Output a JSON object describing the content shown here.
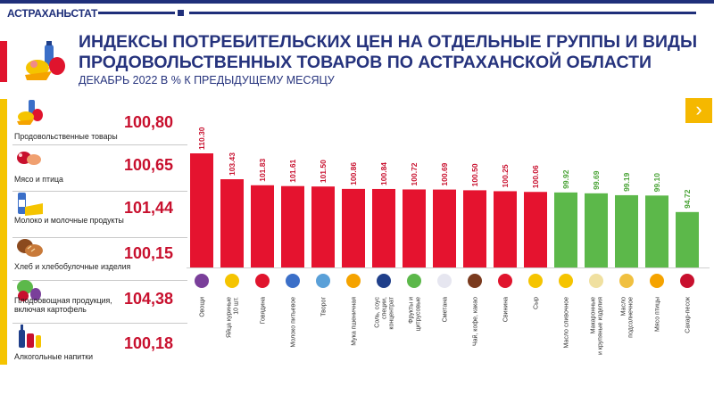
{
  "header": {
    "brand": "АСТРАХАНЬСТАТ",
    "title_line1": "ИНДЕКСЫ ПОТРЕБИТЕЛЬСКИХ ЦЕН НА ОТДЕЛЬНЫЕ ГРУППЫ И ВИДЫ",
    "title_line2": "ПРОДОВОЛЬСТВЕННЫХ ТОВАРОВ ПО АСТРАХАНСКОЙ ОБЛАСТИ",
    "subtitle": "ДЕКАБРЬ 2022 В % К ПРЕДЫДУЩЕМУ МЕСЯЦУ"
  },
  "colors": {
    "brand": "#1f2f7a",
    "accent_red": "#e0142d",
    "accent_yellow": "#f5c400",
    "bar_red": "#e5132f",
    "bar_green": "#5cb84a",
    "value_red": "#c8102e",
    "value_green": "#4aa336"
  },
  "nav": {
    "next_icon": "chevron-right-icon",
    "next_symbol": "›"
  },
  "sidebar": {
    "groups": [
      {
        "label": "Продовольственные товары",
        "value": "100,80",
        "icon": "food-icon"
      },
      {
        "label": "Мясо и птица",
        "value": "100,65",
        "icon": "meat-icon"
      },
      {
        "label": "Молоко и молочные продукты",
        "value": "101,44",
        "icon": "milk-icon"
      },
      {
        "label": "Хлеб и хлебобулочные изделия",
        "value": "100,15",
        "icon": "bread-icon"
      },
      {
        "label": "Плодоовощная продукция, включая картофель",
        "label_line1": "Плодоовощная продукция,",
        "label_line2": "включая картофель",
        "value": "104,38",
        "icon": "vegetables-icon"
      },
      {
        "label": "Алкогольные напитки",
        "value": "100,18",
        "icon": "bottles-icon"
      }
    ]
  },
  "chart_data": {
    "type": "bar",
    "title": "Индексы потребительских цен, декабрь 2022 в % к предыдущему месяцу",
    "categories": [
      "Овощи",
      "Яйца куриные 10 шт.",
      "Говядина",
      "Молоко питьевое",
      "Творог",
      "Мука пшеничная",
      "Соль, соус специи, концентрат",
      "Фрукты и цитрусовые",
      "Сметана",
      "Чай, кофе, какао",
      "Свинина",
      "Сыр",
      "Масло сливочное",
      "Макаронные и крупяные изделия",
      "Масло подсолнечное",
      "Мясо птицы",
      "Сахар-песок"
    ],
    "category_lines": [
      [
        "Овощи"
      ],
      [
        "Яйца куриные",
        "10 шт."
      ],
      [
        "Говядина"
      ],
      [
        "Молоко питьевое"
      ],
      [
        "Творог"
      ],
      [
        "Мука пшеничная"
      ],
      [
        "Соль, соус",
        "специи,",
        "концентрат"
      ],
      [
        "Фрукты и",
        "цитрусовые"
      ],
      [
        "Сметана"
      ],
      [
        "Чай, кофе, какао"
      ],
      [
        "Свинина"
      ],
      [
        "Сыр"
      ],
      [
        "Масло сливочное"
      ],
      [
        "Макаронные",
        "и крупяные изделия"
      ],
      [
        "Масло",
        "подсолнечное"
      ],
      [
        "Мясо птицы"
      ],
      [
        "Сахар-песок"
      ]
    ],
    "values": [
      110.3,
      103.43,
      101.83,
      101.61,
      101.5,
      100.86,
      100.84,
      100.72,
      100.69,
      100.5,
      100.25,
      100.06,
      99.92,
      99.69,
      99.19,
      99.1,
      94.72
    ],
    "value_labels": [
      "110.30",
      "103.43",
      "101.83",
      "101.61",
      "101.50",
      "100.86",
      "100.84",
      "100.72",
      "100.69",
      "100.50",
      "100.25",
      "100.06",
      "99.92",
      "99.69",
      "99.19",
      "99.10",
      "94.72"
    ],
    "threshold": 100,
    "xlabel": "",
    "ylabel": "%",
    "ylim": [
      80,
      110.3
    ],
    "grid": false,
    "legend": "none"
  }
}
